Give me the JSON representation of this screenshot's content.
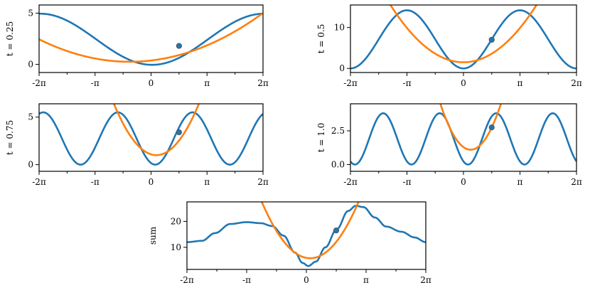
{
  "colors": {
    "curve": "#1f77b4",
    "parabola": "#ff7f0e",
    "point": "#1f77b4",
    "point_edge": "#555555"
  },
  "chart_data": [
    {
      "type": "line",
      "ylabel": "t = 0.25",
      "xlim": [
        -6.2832,
        6.2832
      ],
      "ylim": [
        -0.8,
        5.8
      ],
      "xticks": [
        -6.2832,
        -3.1416,
        0,
        3.1416,
        6.2832
      ],
      "xtick_labels": [
        "-2π",
        "-π",
        "0",
        "π",
        "2π"
      ],
      "yticks": [
        0,
        5
      ],
      "ytick_labels": [
        "0",
        "5"
      ],
      "series": [
        {
          "role": "curve",
          "formula": "2.5*(1 + sin(0.5*x + 2.2))+0.05*x",
          "a": 2.5,
          "f": 0.5,
          "p": -1.6,
          "off": 2.45
        },
        {
          "role": "taylor",
          "a": 0.085,
          "x0": -1.2,
          "y0": 0.25
        }
      ],
      "point": {
        "x": 1.57,
        "y": 1.8
      }
    },
    {
      "type": "line",
      "ylabel": "t = 0.5",
      "xlim": [
        -6.2832,
        6.2832
      ],
      "ylim": [
        -1,
        15.5
      ],
      "xticks": [
        -6.2832,
        -3.1416,
        0,
        3.1416,
        6.2832
      ],
      "xtick_labels": [
        "-2π",
        "-π",
        "0",
        "π",
        "2π"
      ],
      "yticks": [
        0,
        10
      ],
      "ytick_labels": [
        "0",
        "10"
      ],
      "series": [
        {
          "role": "curve",
          "kind": "cos",
          "amp": 7.1,
          "freq": 1.0,
          "shift": 0.0,
          "mid": 7.1
        },
        {
          "role": "taylor",
          "a": 0.85,
          "x0": 0.0,
          "y0": 1.5
        }
      ],
      "point": {
        "x": 1.57,
        "y": 7.0
      }
    },
    {
      "type": "line",
      "ylabel": "t = 0.75",
      "xlim": [
        -6.2832,
        6.2832
      ],
      "ylim": [
        -0.7,
        6.4
      ],
      "xticks": [
        -6.2832,
        -3.1416,
        0,
        3.1416,
        6.2832
      ],
      "xtick_labels": [
        "-2π",
        "-π",
        "0",
        "π",
        "2π"
      ],
      "yticks": [
        0,
        5
      ],
      "ytick_labels": [
        "0",
        "5"
      ],
      "series": [
        {
          "role": "curve",
          "kind": "cos",
          "amp": 2.75,
          "freq": 1.5,
          "shift": -0.35,
          "mid": 2.75
        },
        {
          "role": "taylor",
          "a": 0.95,
          "x0": 0.3,
          "y0": 1.0
        }
      ],
      "point": {
        "x": 1.57,
        "y": 3.4
      }
    },
    {
      "type": "line",
      "ylabel": "t = 1.0",
      "xlim": [
        -6.2832,
        6.2832
      ],
      "ylim": [
        -0.5,
        4.5
      ],
      "xticks": [
        -6.2832,
        -3.1416,
        0,
        3.1416,
        6.2832
      ],
      "xtick_labels": [
        "-2π",
        "-π",
        "0",
        "π",
        "2π"
      ],
      "yticks": [
        0,
        2.5
      ],
      "ytick_labels": [
        "0.0",
        "2.5"
      ],
      "series": [
        {
          "role": "curve",
          "kind": "cos",
          "amp": 1.9,
          "freq": 2.0,
          "shift": -0.5,
          "mid": 1.9
        },
        {
          "role": "taylor",
          "a": 1.2,
          "x0": 0.4,
          "y0": 1.1
        }
      ],
      "point": {
        "x": 1.57,
        "y": 2.75
      }
    },
    {
      "type": "line",
      "ylabel": "sum",
      "xlim": [
        -6.2832,
        6.2832
      ],
      "ylim": [
        1.5,
        27.5
      ],
      "xticks": [
        -6.2832,
        -3.1416,
        0,
        3.1416,
        6.2832
      ],
      "xtick_labels": [
        "-2π",
        "-π",
        "0",
        "π",
        "2π"
      ],
      "yticks": [
        10,
        20
      ],
      "ytick_labels": [
        "10",
        "20"
      ],
      "series": [
        {
          "role": "curve",
          "kind": "points",
          "x": [
            -6.28,
            -5.5,
            -4.8,
            -4.0,
            -3.14,
            -2.4,
            -1.8,
            -1.2,
            -0.6,
            -0.2,
            0.1,
            0.5,
            1.0,
            1.6,
            2.2,
            2.6,
            3.0,
            3.6,
            4.2,
            5.0,
            5.7,
            6.28
          ],
          "y": [
            12.0,
            12.5,
            15.5,
            19.0,
            19.7,
            19.3,
            18.2,
            14.5,
            8.0,
            4.0,
            2.8,
            4.5,
            10.0,
            17.0,
            24.0,
            26.0,
            25.5,
            21.5,
            18.0,
            16.0,
            13.8,
            12.0
          ]
        },
        {
          "role": "taylor",
          "a": 3.35,
          "x0": 0.2,
          "y0": 5.8
        }
      ],
      "point": {
        "x": 1.57,
        "y": 16.5
      }
    }
  ]
}
